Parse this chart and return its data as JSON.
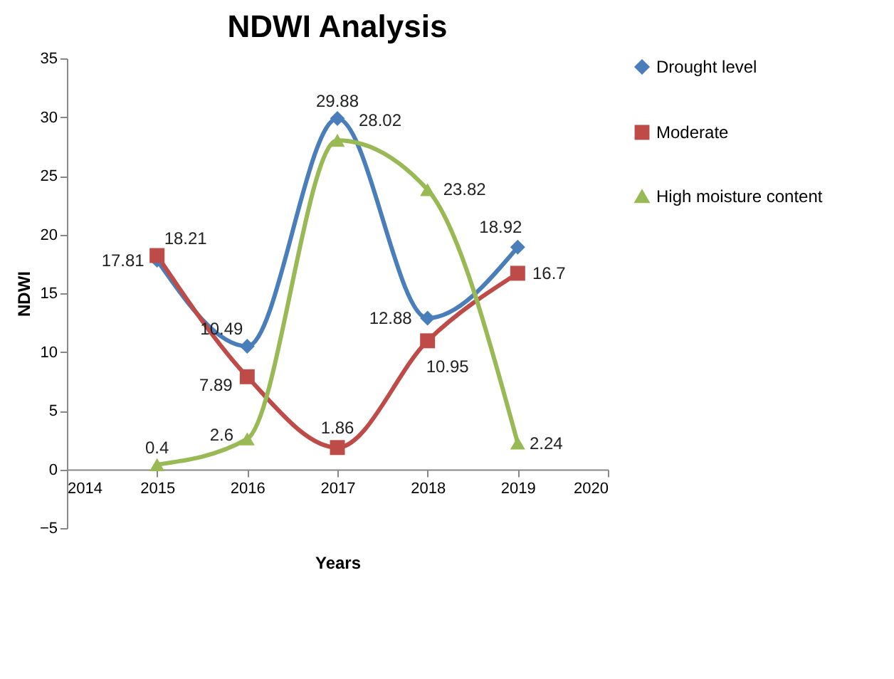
{
  "chart_data": {
    "type": "line",
    "title": "NDWI Analysis",
    "xlabel": "Years",
    "ylabel": "NDWI",
    "x": [
      2015,
      2016,
      2017,
      2018,
      2019
    ],
    "series": [
      {
        "name": "Drought level",
        "color": "#4a7ebb",
        "marker": "diamond",
        "values": [
          17.81,
          10.49,
          29.88,
          12.88,
          18.92
        ]
      },
      {
        "name": "Moderate",
        "color": "#be4b48",
        "marker": "square",
        "values": [
          18.21,
          7.89,
          1.86,
          10.95,
          16.7
        ]
      },
      {
        "name": "High moisture content",
        "color": "#98b954",
        "marker": "triangle",
        "values": [
          0.4,
          2.6,
          28.02,
          23.82,
          2.24
        ]
      }
    ],
    "xlim": [
      2014,
      2020
    ],
    "xticks": [
      2014,
      2015,
      2016,
      2017,
      2018,
      2019,
      2020
    ],
    "ylim": [
      -5,
      35
    ],
    "yticks": [
      -5,
      0,
      5,
      10,
      15,
      20,
      25,
      30,
      35
    ],
    "grid": false,
    "legend": "right",
    "data_labels": true
  }
}
